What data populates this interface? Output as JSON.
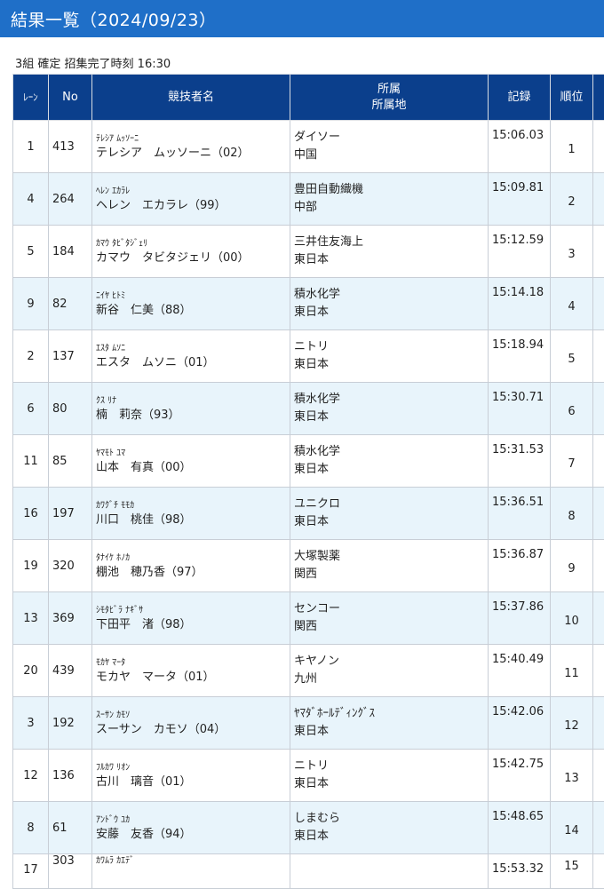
{
  "header": {
    "title": "結果一覧（2024/09/23）"
  },
  "subtitle": "3組 確定 招集完了時刻 16:30",
  "columns": {
    "lane": "ﾚｰﾝ",
    "no": "No",
    "name": "競技者名",
    "affil_1": "所属",
    "affil_2": "所属地",
    "record": "記録",
    "rank": "順位"
  },
  "rows": [
    {
      "lane": "1",
      "no": "413",
      "kana": "ﾃﾚｼｱ ﾑｯｿｰﾆ",
      "name": "テレシア　ムッソーニ（02）",
      "team": "ダイソー",
      "region": "中国",
      "record": "15:06.03",
      "rank": "1"
    },
    {
      "lane": "4",
      "no": "264",
      "kana": "ﾍﾚﾝ ｴｶﾗﾚ",
      "name": "ヘレン　エカラレ（99）",
      "team": "豊田自動織機",
      "region": "中部",
      "record": "15:09.81",
      "rank": "2"
    },
    {
      "lane": "5",
      "no": "184",
      "kana": "ｶﾏｳ ﾀﾋﾞﾀｼﾞｪﾘ",
      "name": "カマウ　タビタジェリ（00）",
      "team": "三井住友海上",
      "region": "東日本",
      "record": "15:12.59",
      "rank": "3"
    },
    {
      "lane": "9",
      "no": "82",
      "kana": "ﾆｲﾔ ﾋﾄﾐ",
      "name": "新谷　仁美（88）",
      "team": "積水化学",
      "region": "東日本",
      "record": "15:14.18",
      "rank": "4"
    },
    {
      "lane": "2",
      "no": "137",
      "kana": "ｴｽﾀ ﾑｿﾆ",
      "name": "エスタ　ムソニ（01）",
      "team": "ニトリ",
      "region": "東日本",
      "record": "15:18.94",
      "rank": "5"
    },
    {
      "lane": "6",
      "no": "80",
      "kana": "ｸｽ ﾘﾅ",
      "name": "楠　莉奈（93）",
      "team": "積水化学",
      "region": "東日本",
      "record": "15:30.71",
      "rank": "6"
    },
    {
      "lane": "11",
      "no": "85",
      "kana": "ﾔﾏﾓﾄ ﾕﾏ",
      "name": "山本　有真（00）",
      "team": "積水化学",
      "region": "東日本",
      "record": "15:31.53",
      "rank": "7"
    },
    {
      "lane": "16",
      "no": "197",
      "kana": "ｶﾜｸﾞﾁ ﾓﾓｶ",
      "name": "川口　桃佳（98）",
      "team": "ユニクロ",
      "region": "東日本",
      "record": "15:36.51",
      "rank": "8"
    },
    {
      "lane": "19",
      "no": "320",
      "kana": "ﾀﾅｲｹ ﾎﾉｶ",
      "name": "棚池　穂乃香（97）",
      "team": "大塚製薬",
      "region": "関西",
      "record": "15:36.87",
      "rank": "9"
    },
    {
      "lane": "13",
      "no": "369",
      "kana": "ｼﾓﾀﾋﾞﾗ ﾅｷﾞｻ",
      "name": "下田平　渚（98）",
      "team": "センコー",
      "region": "関西",
      "record": "15:37.86",
      "rank": "10"
    },
    {
      "lane": "20",
      "no": "439",
      "kana": "ﾓｶﾔ ﾏｰﾀ",
      "name": "モカヤ　マータ（01）",
      "team": "キヤノン",
      "region": "九州",
      "record": "15:40.49",
      "rank": "11"
    },
    {
      "lane": "3",
      "no": "192",
      "kana": "ｽｰｻﾝ ｶﾓｿ",
      "name": "スーサン　カモソ（04）",
      "team": "ﾔﾏﾀﾞﾎｰﾙﾃﾞｨﾝｸﾞｽ",
      "region": "東日本",
      "record": "15:42.06",
      "rank": "12"
    },
    {
      "lane": "12",
      "no": "136",
      "kana": "ﾌﾙｶﾜ ﾘｵﾝ",
      "name": "古川　璃音（01）",
      "team": "ニトリ",
      "region": "東日本",
      "record": "15:42.75",
      "rank": "13"
    },
    {
      "lane": "8",
      "no": "61",
      "kana": "ｱﾝﾄﾞｳ ﾕｶ",
      "name": "安藤　友香（94）",
      "team": "しまむら",
      "region": "東日本",
      "record": "15:48.65",
      "rank": "14"
    },
    {
      "lane": "17",
      "no": "303",
      "kana": "ｶﾜﾑﾗ ｶｴﾃﾞ",
      "name": "",
      "team": "",
      "region": "",
      "record": "15:53.32",
      "rank": "15"
    }
  ]
}
